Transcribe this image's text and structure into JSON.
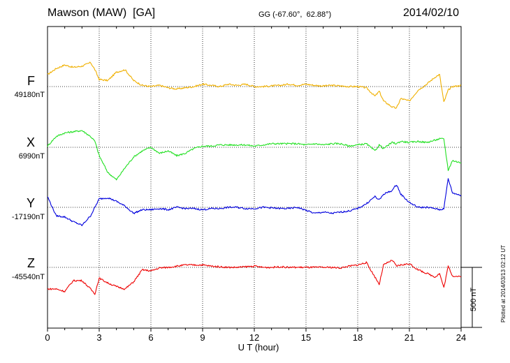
{
  "header": {
    "station": "Mawson (MAW)  [GA]",
    "coords": "GG (-67.60°,  62.88°)",
    "date": "2014/02/10"
  },
  "footer": {
    "xlabel": "U T (hour)",
    "scale": "500 nT",
    "plotted": "Plotted at 2014/03/13 02:12 UT"
  },
  "colors": {
    "F": "#f0b000",
    "X": "#22e022",
    "Y": "#0000dd",
    "Z": "#ee0000"
  },
  "chart_data": {
    "type": "line",
    "title": "Mawson (MAW)  [GA]",
    "xlabel": "U T (hour)",
    "ylabel": "",
    "xlim": [
      0,
      24
    ],
    "x_ticks": [
      "0",
      "3",
      "6",
      "9",
      "12",
      "15",
      "18",
      "21",
      "24"
    ],
    "scale_bar_nT": 500,
    "grid": true,
    "x": [
      0,
      0.5,
      1,
      1.5,
      2,
      2.5,
      2.75,
      3,
      3.5,
      4,
      4.5,
      5,
      5.5,
      6,
      6.5,
      7,
      7.5,
      8,
      8.5,
      9,
      9.5,
      10,
      10.5,
      11,
      11.5,
      12,
      12.5,
      13,
      13.5,
      14,
      14.5,
      15,
      15.5,
      16,
      16.5,
      17,
      17.5,
      18,
      18.5,
      19,
      19.25,
      19.5,
      20,
      20.25,
      20.5,
      21,
      21.5,
      22,
      22.5,
      22.75,
      23,
      23.25,
      23.5,
      24
    ],
    "series": [
      {
        "name": "F",
        "baseline_label": "49180nT",
        "baseline_nT": 49180,
        "color": "#f0b000",
        "values": [
          49280,
          49330,
          49360,
          49340,
          49350,
          49380,
          49320,
          49240,
          49230,
          49300,
          49320,
          49230,
          49190,
          49180,
          49190,
          49170,
          49160,
          49170,
          49180,
          49200,
          49190,
          49180,
          49200,
          49190,
          49200,
          49180,
          49180,
          49185,
          49190,
          49200,
          49190,
          49200,
          49190,
          49185,
          49190,
          49185,
          49180,
          49180,
          49170,
          49100,
          49140,
          49060,
          49010,
          49000,
          49080,
          49060,
          49150,
          49200,
          49260,
          49280,
          49050,
          49150,
          49180,
          49190
        ]
      },
      {
        "name": "X",
        "baseline_label": "6990nT",
        "baseline_nT": 6990,
        "color": "#22e022",
        "values": [
          7000,
          7080,
          7110,
          7120,
          7130,
          7080,
          7040,
          6920,
          6780,
          6720,
          6820,
          6910,
          6960,
          6990,
          6940,
          6960,
          6920,
          6940,
          6980,
          7000,
          7000,
          7010,
          7010,
          7010,
          7010,
          7000,
          7010,
          7020,
          7020,
          7020,
          7020,
          7010,
          7020,
          7010,
          7020,
          7020,
          7000,
          7010,
          7020,
          6960,
          7010,
          6980,
          7030,
          7020,
          7040,
          7030,
          7040,
          7030,
          7050,
          7060,
          7060,
          6800,
          6880,
          6860
        ]
      },
      {
        "name": "Y",
        "baseline_label": "-17190nT",
        "baseline_nT": -17190,
        "color": "#0000dd",
        "values": [
          -17100,
          -17260,
          -17270,
          -17310,
          -17340,
          -17260,
          -17190,
          -17120,
          -17110,
          -17140,
          -17180,
          -17240,
          -17210,
          -17210,
          -17200,
          -17210,
          -17190,
          -17200,
          -17200,
          -17210,
          -17200,
          -17200,
          -17190,
          -17190,
          -17200,
          -17200,
          -17190,
          -17195,
          -17200,
          -17200,
          -17190,
          -17215,
          -17240,
          -17230,
          -17240,
          -17230,
          -17220,
          -17200,
          -17160,
          -17100,
          -17130,
          -17080,
          -17050,
          -17000,
          -17080,
          -17150,
          -17190,
          -17190,
          -17200,
          -17210,
          -17200,
          -16950,
          -17070,
          -17090
        ]
      },
      {
        "name": "Z",
        "baseline_label": "-45540nT",
        "baseline_nT": -45540,
        "color": "#ee0000",
        "values": [
          -45720,
          -45720,
          -45740,
          -45650,
          -45650,
          -45720,
          -45760,
          -45630,
          -45670,
          -45700,
          -45720,
          -45660,
          -45560,
          -45570,
          -45545,
          -45540,
          -45530,
          -45520,
          -45520,
          -45520,
          -45530,
          -45535,
          -45540,
          -45540,
          -45535,
          -45530,
          -45540,
          -45540,
          -45535,
          -45540,
          -45540,
          -45540,
          -45540,
          -45540,
          -45540,
          -45545,
          -45530,
          -45520,
          -45500,
          -45620,
          -45680,
          -45520,
          -45480,
          -45530,
          -45520,
          -45510,
          -45560,
          -45590,
          -45620,
          -45590,
          -45710,
          -45530,
          -45610,
          -45620
        ]
      }
    ]
  }
}
